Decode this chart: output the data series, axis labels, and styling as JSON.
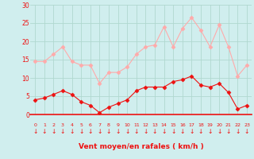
{
  "x": [
    0,
    1,
    2,
    3,
    4,
    5,
    6,
    7,
    8,
    9,
    10,
    11,
    12,
    13,
    14,
    15,
    16,
    17,
    18,
    19,
    20,
    21,
    22,
    23
  ],
  "wind_avg": [
    4.0,
    4.5,
    5.5,
    6.5,
    5.5,
    3.5,
    2.5,
    0.5,
    2.0,
    3.0,
    4.0,
    6.5,
    7.5,
    7.5,
    7.5,
    9.0,
    9.5,
    10.5,
    8.0,
    7.5,
    8.5,
    6.0,
    1.5,
    2.5
  ],
  "wind_gust": [
    14.5,
    14.5,
    16.5,
    18.5,
    14.5,
    13.5,
    13.5,
    8.5,
    11.5,
    11.5,
    13.0,
    16.5,
    18.5,
    19.0,
    24.0,
    18.5,
    23.5,
    26.5,
    23.0,
    18.5,
    24.5,
    18.5,
    10.5,
    13.5
  ],
  "avg_color": "#ee1111",
  "gust_color": "#ffaaaa",
  "bg_color": "#d0eeee",
  "grid_color": "#b0d8d0",
  "xlabel": "Vent moyen/en rafales ( km/h )",
  "ylim": [
    0,
    30
  ],
  "xlim_min": -0.5,
  "xlim_max": 23.5,
  "yticks": [
    0,
    5,
    10,
    15,
    20,
    25,
    30
  ],
  "xticks": [
    0,
    1,
    2,
    3,
    4,
    5,
    6,
    7,
    8,
    9,
    10,
    11,
    12,
    13,
    14,
    15,
    16,
    17,
    18,
    19,
    20,
    21,
    22,
    23
  ]
}
